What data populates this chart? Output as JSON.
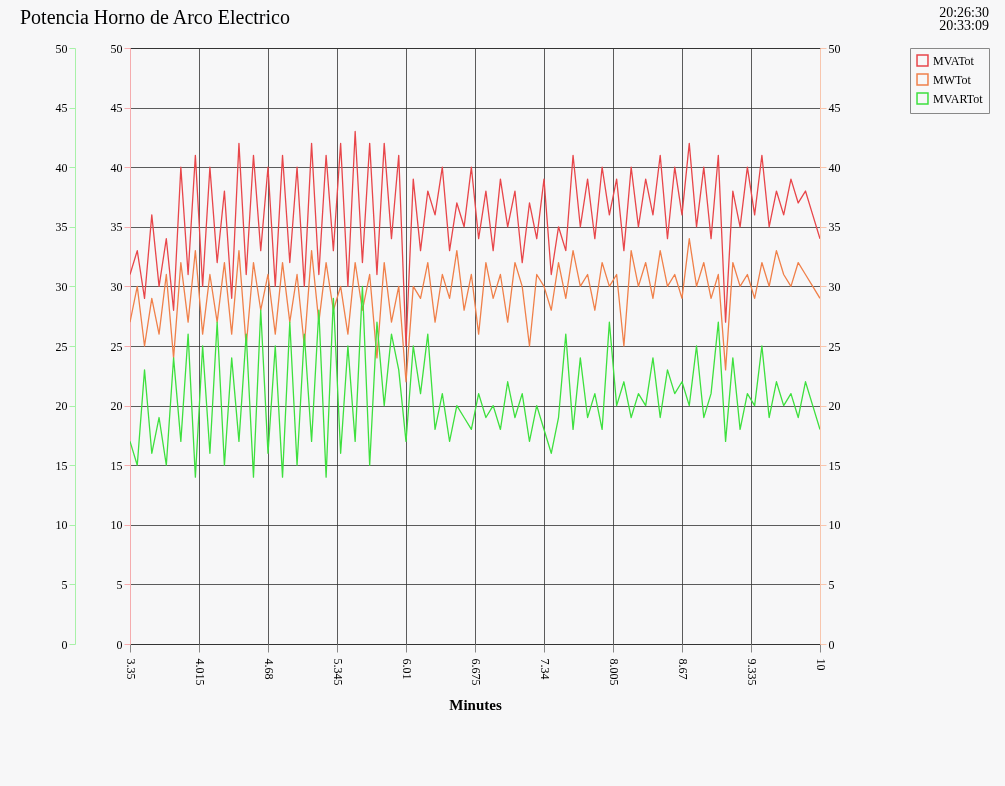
{
  "chart_data": {
    "type": "line",
    "title": "Potencia Horno de Arco Electrico",
    "xlabel": "Minutes",
    "annotations": [
      "20:26:30",
      "20:33:09"
    ],
    "x": [
      3.35,
      3.42,
      3.49,
      3.56,
      3.63,
      3.7,
      3.77,
      3.84,
      3.91,
      3.98,
      4.05,
      4.12,
      4.19,
      4.26,
      4.33,
      4.4,
      4.47,
      4.54,
      4.61,
      4.68,
      4.75,
      4.82,
      4.89,
      4.96,
      5.03,
      5.1,
      5.17,
      5.24,
      5.31,
      5.38,
      5.45,
      5.52,
      5.59,
      5.66,
      5.73,
      5.8,
      5.87,
      5.94,
      6.01,
      6.08,
      6.15,
      6.22,
      6.29,
      6.36,
      6.43,
      6.5,
      6.57,
      6.64,
      6.71,
      6.78,
      6.85,
      6.92,
      6.99,
      7.06,
      7.13,
      7.2,
      7.27,
      7.34,
      7.41,
      7.48,
      7.55,
      7.62,
      7.69,
      7.76,
      7.83,
      7.9,
      7.97,
      8.04,
      8.11,
      8.18,
      8.25,
      8.32,
      8.39,
      8.46,
      8.53,
      8.6,
      8.67,
      8.74,
      8.81,
      8.88,
      8.95,
      9.02,
      9.09,
      9.16,
      9.23,
      9.3,
      9.37,
      9.44,
      9.51,
      9.58,
      9.65,
      9.72,
      9.79,
      9.86,
      9.93,
      10.0
    ],
    "xlim": [
      3.35,
      10
    ],
    "xticks": [
      3.35,
      4.015,
      4.68,
      5.345,
      6.01,
      6.675,
      7.34,
      8.005,
      8.67,
      9.335,
      10
    ],
    "ylim": [
      0,
      50
    ],
    "yticks": [
      0,
      5,
      10,
      15,
      20,
      25,
      30,
      35,
      40,
      45,
      50
    ],
    "y2lim": [
      0,
      50
    ],
    "y2ticks": [
      0,
      5,
      10,
      15,
      20,
      25,
      30,
      35,
      40,
      45,
      50
    ],
    "y3lim": [
      0,
      50
    ],
    "y3ticks": [
      0,
      5,
      10,
      15,
      20,
      25,
      30,
      35,
      40,
      45,
      50
    ],
    "grid": true,
    "legend": "right",
    "series": [
      {
        "name": "MVATot",
        "color": "#e8464a",
        "values": [
          31,
          33,
          29,
          36,
          30,
          34,
          28,
          40,
          31,
          41,
          30,
          40,
          32,
          38,
          29,
          42,
          31,
          41,
          33,
          40,
          30,
          41,
          32,
          40,
          30,
          42,
          31,
          41,
          33,
          42,
          30,
          43,
          32,
          42,
          31,
          42,
          34,
          41,
          25,
          39,
          33,
          38,
          36,
          40,
          33,
          37,
          35,
          40,
          34,
          38,
          33,
          39,
          35,
          38,
          32,
          37,
          34,
          39,
          31,
          35,
          33,
          41,
          35,
          39,
          34,
          40,
          36,
          39,
          33,
          40,
          35,
          39,
          36,
          41,
          34,
          40,
          36,
          42,
          35,
          40,
          34,
          41,
          27,
          38,
          35,
          40,
          36,
          41,
          35,
          38,
          36,
          39,
          37,
          38,
          36,
          34
        ]
      },
      {
        "name": "MWTot",
        "color": "#f0804a",
        "axis": "y2",
        "values": [
          27,
          30,
          25,
          29,
          26,
          31,
          24,
          32,
          27,
          33,
          26,
          31,
          27,
          32,
          26,
          33,
          25,
          32,
          28,
          31,
          26,
          32,
          27,
          31,
          25,
          33,
          27,
          32,
          28,
          30,
          26,
          32,
          28,
          31,
          24,
          32,
          27,
          30,
          22,
          30,
          29,
          32,
          27,
          31,
          29,
          33,
          28,
          31,
          26,
          32,
          29,
          31,
          27,
          32,
          30,
          25,
          31,
          30,
          28,
          32,
          29,
          33,
          30,
          31,
          28,
          32,
          30,
          31,
          25,
          33,
          30,
          32,
          29,
          33,
          30,
          31,
          29,
          34,
          30,
          32,
          29,
          31,
          23,
          32,
          30,
          31,
          29,
          32,
          30,
          33,
          31,
          30,
          32,
          31,
          30,
          29
        ]
      },
      {
        "name": "MVARTot",
        "color": "#3ee03e",
        "axis": "y3",
        "values": [
          17,
          15,
          23,
          16,
          19,
          15,
          24,
          17,
          26,
          14,
          25,
          16,
          27,
          15,
          24,
          17,
          26,
          14,
          28,
          16,
          25,
          14,
          27,
          15,
          26,
          17,
          28,
          14,
          29,
          16,
          25,
          17,
          30,
          15,
          27,
          20,
          26,
          23,
          17,
          25,
          21,
          26,
          18,
          21,
          17,
          20,
          19,
          18,
          21,
          19,
          20,
          18,
          22,
          19,
          21,
          17,
          20,
          18,
          16,
          19,
          26,
          18,
          24,
          19,
          21,
          18,
          27,
          20,
          22,
          19,
          21,
          20,
          24,
          19,
          23,
          21,
          22,
          20,
          25,
          19,
          21,
          27,
          17,
          24,
          18,
          21,
          20,
          25,
          19,
          22,
          20,
          21,
          19,
          22,
          20,
          18
        ]
      }
    ]
  }
}
